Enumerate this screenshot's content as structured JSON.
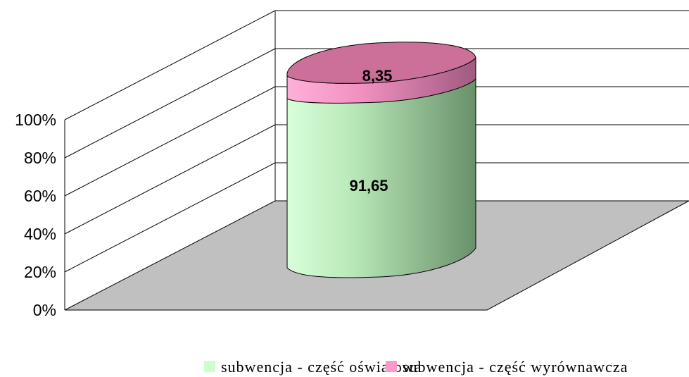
{
  "chart_data": {
    "type": "bar",
    "subtype": "3d-stacked-cylinder-100-percent",
    "categories": [
      ""
    ],
    "series": [
      {
        "name": "subwencja - część oświatowa",
        "values": [
          91.65
        ],
        "value_label": "91,65",
        "color": "#ccffcc"
      },
      {
        "name": "subwencja - część wyrównawcza",
        "values": [
          8.35
        ],
        "value_label": "8,35",
        "color": "#ff99cc"
      }
    ],
    "yticks": [
      "0%",
      "20%",
      "40%",
      "60%",
      "80%",
      "100%"
    ],
    "ylim": [
      0,
      100
    ],
    "grid": true,
    "legend": "bottom",
    "floor_color": "#c0c0c0"
  }
}
